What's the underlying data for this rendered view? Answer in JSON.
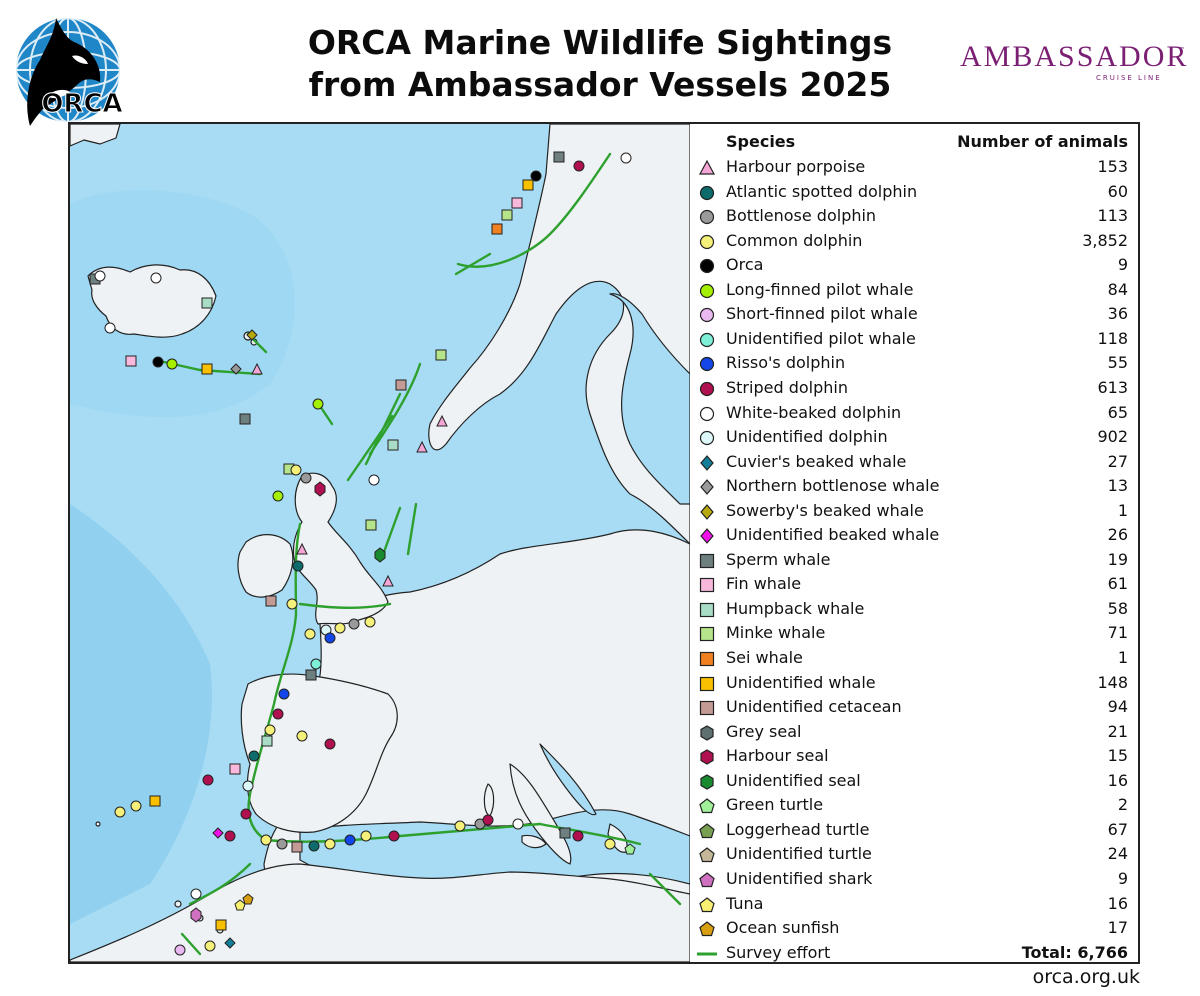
{
  "header": {
    "title_line1": "ORCA Marine Wildlife Sightings",
    "title_line2": "from Ambassador Vessels 2025",
    "orca_logo_text": "ORCA",
    "ambassador_logo_text": "AMBASSADOR",
    "ambassador_logo_sub": "CRUISE LINE",
    "ambassador_logo_tm": "™"
  },
  "legend": {
    "species_header": "Species",
    "count_header": "Number of animals",
    "items": [
      {
        "name": "Harbour porpoise",
        "count": "153",
        "shape": "triangle",
        "color": "#f4a6d7"
      },
      {
        "name": "Atlantic spotted dolphin",
        "count": "60",
        "shape": "circle",
        "color": "#0e6b6b"
      },
      {
        "name": "Bottlenose dolphin",
        "count": "113",
        "shape": "circle",
        "color": "#9a9a9a"
      },
      {
        "name": "Common dolphin",
        "count": "3,852",
        "shape": "circle",
        "color": "#f5f07a"
      },
      {
        "name": "Orca",
        "count": "9",
        "shape": "circle",
        "color": "#000000"
      },
      {
        "name": "Long-finned pilot whale",
        "count": "84",
        "shape": "circle",
        "color": "#a4f000"
      },
      {
        "name": "Short-finned pilot whale",
        "count": "36",
        "shape": "circle",
        "color": "#eab8f0"
      },
      {
        "name": "Unidentified pilot whale",
        "count": "118",
        "shape": "circle",
        "color": "#7ff0d8"
      },
      {
        "name": "Risso's dolphin",
        "count": "55",
        "shape": "circle",
        "color": "#1246e8"
      },
      {
        "name": "Striped dolphin",
        "count": "613",
        "shape": "circle",
        "color": "#b0104f"
      },
      {
        "name": "White-beaked dolphin",
        "count": "65",
        "shape": "circle",
        "color": "#ffffff"
      },
      {
        "name": "Unidentified dolphin",
        "count": "902",
        "shape": "circle",
        "color": "#dcf8f8"
      },
      {
        "name": "Cuvier's beaked whale",
        "count": "27",
        "shape": "diamond",
        "color": "#127e9a"
      },
      {
        "name": "Northern bottlenose whale",
        "count": "13",
        "shape": "diamond",
        "color": "#9a9a9a"
      },
      {
        "name": "Sowerby's beaked whale",
        "count": "1",
        "shape": "diamond",
        "color": "#b8a810"
      },
      {
        "name": "Unidentified beaked whale",
        "count": "26",
        "shape": "diamond",
        "color": "#f010e8"
      },
      {
        "name": "Sperm whale",
        "count": "19",
        "shape": "square",
        "color": "#6e7f80"
      },
      {
        "name": "Fin whale",
        "count": "61",
        "shape": "square",
        "color": "#f8b8dc"
      },
      {
        "name": "Humpback whale",
        "count": "58",
        "shape": "square",
        "color": "#a8dcc4"
      },
      {
        "name": "Minke whale",
        "count": "71",
        "shape": "square",
        "color": "#b6e48a"
      },
      {
        "name": "Sei whale",
        "count": "1",
        "shape": "square",
        "color": "#f08020"
      },
      {
        "name": "Unidentified whale",
        "count": "148",
        "shape": "square",
        "color": "#f8c000"
      },
      {
        "name": "Unidentified cetacean",
        "count": "94",
        "shape": "square",
        "color": "#c49a94"
      },
      {
        "name": "Grey seal",
        "count": "21",
        "shape": "hexagon",
        "color": "#5e7070"
      },
      {
        "name": "Harbour seal",
        "count": "15",
        "shape": "hexagon",
        "color": "#b0104f"
      },
      {
        "name": "Unidentified seal",
        "count": "16",
        "shape": "hexagon",
        "color": "#1a8a2e"
      },
      {
        "name": "Green turtle",
        "count": "2",
        "shape": "pentagon",
        "color": "#a0f09a"
      },
      {
        "name": "Loggerhead turtle",
        "count": "67",
        "shape": "pentagon",
        "color": "#78a050"
      },
      {
        "name": "Unidentified turtle",
        "count": "24",
        "shape": "pentagon",
        "color": "#c4b898"
      },
      {
        "name": "Unidentified shark",
        "count": "9",
        "shape": "pentagon",
        "color": "#d070c0"
      },
      {
        "name": "Tuna",
        "count": "16",
        "shape": "pentagon",
        "color": "#f8f070"
      },
      {
        "name": "Ocean sunfish",
        "count": "17",
        "shape": "pentagon",
        "color": "#d8a010"
      },
      {
        "name": "Survey effort",
        "count": "Total: 6,766",
        "shape": "line",
        "color": "#2ea02e"
      }
    ]
  },
  "colors": {
    "ocean": "#a8dcf4",
    "deep_ocean": "#78c8ec",
    "land": "#eef2f4",
    "coastline": "#222222",
    "effort_line": "#2ea02e"
  },
  "footer": {
    "url": "orca.org.uk"
  }
}
